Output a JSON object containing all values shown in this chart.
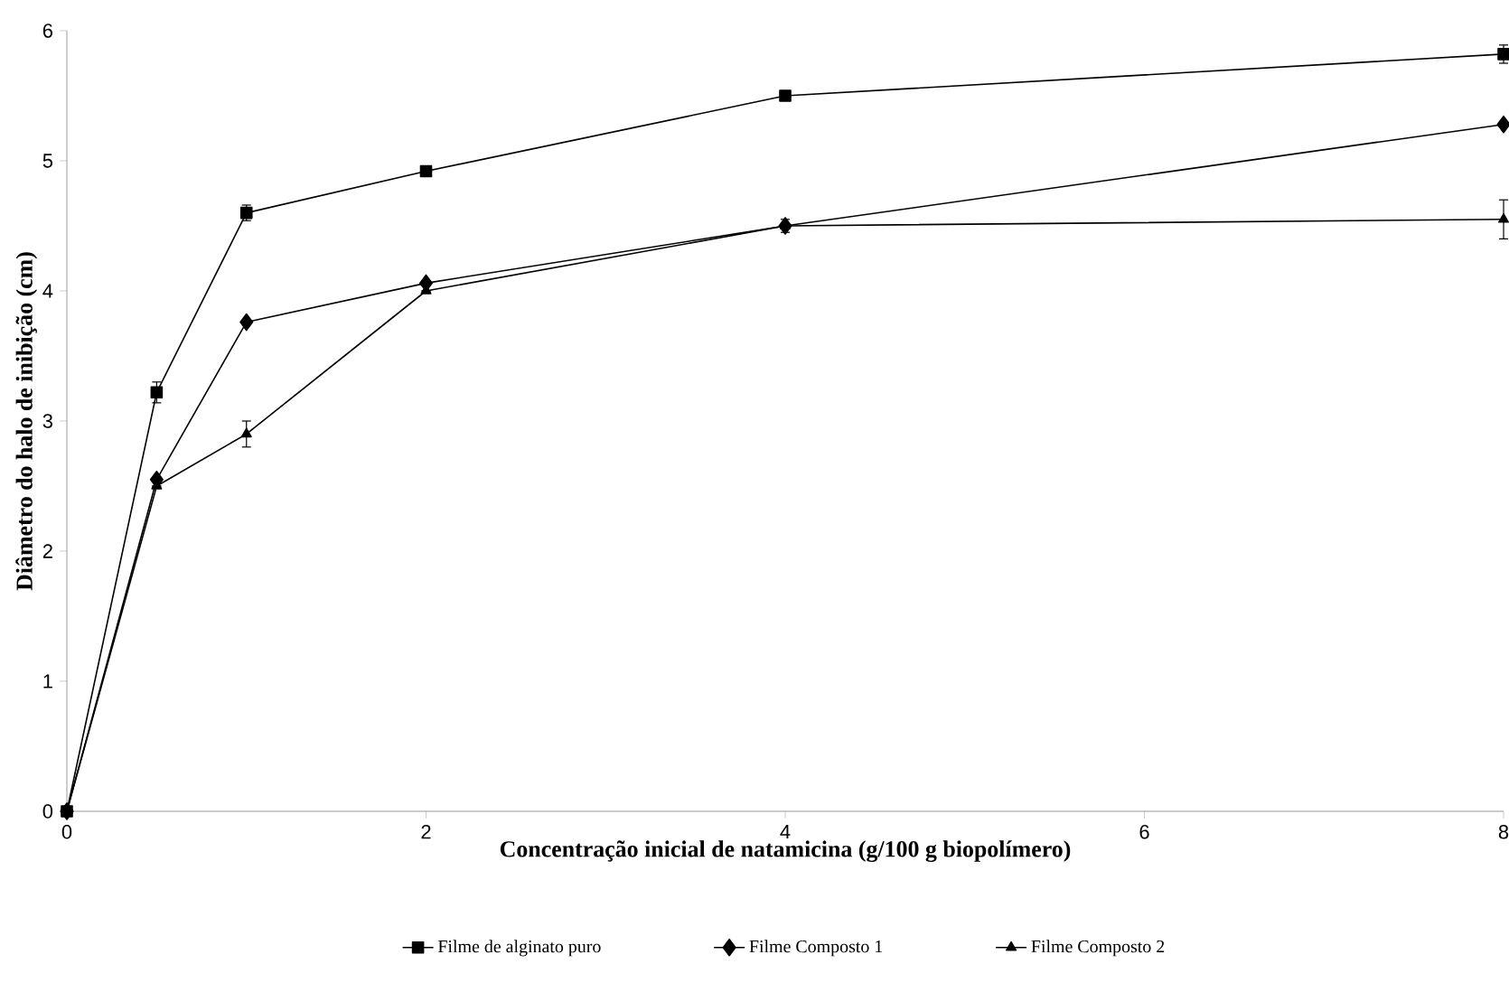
{
  "chart_data": {
    "type": "line",
    "xlabel": "Concentração inicial de natamicina (g/100 g biopolímero)",
    "ylabel": "Diâmetro do halo de inibição (cm)",
    "xlim": [
      0,
      8
    ],
    "ylim": [
      0,
      6
    ],
    "xticks": [
      0,
      2,
      4,
      6,
      8
    ],
    "yticks": [
      0,
      1,
      2,
      3,
      4,
      5,
      6
    ],
    "legend": "bottom",
    "grid": false,
    "line_style": "solid",
    "x": [
      0,
      0.5,
      1,
      2,
      4,
      8
    ],
    "series": [
      {
        "name": "Filme de alginato puro",
        "color": "#000000",
        "marker": "square",
        "values": [
          0,
          3.22,
          4.6,
          4.92,
          5.5,
          5.82
        ],
        "errors": [
          null,
          0.08,
          0.06,
          null,
          null,
          0.07
        ]
      },
      {
        "name": "Filme Composto 1",
        "color": "#000000",
        "marker": "diamond",
        "values": [
          0,
          2.55,
          3.76,
          4.06,
          4.5,
          5.28
        ],
        "errors": [
          null,
          null,
          null,
          null,
          null,
          null
        ]
      },
      {
        "name": "Filme Composto 2",
        "color": "#000000",
        "marker": "triangle",
        "values": [
          0,
          2.5,
          2.9,
          4.0,
          4.5,
          4.55
        ],
        "errors": [
          null,
          null,
          0.1,
          null,
          0.05,
          0.15
        ]
      }
    ]
  }
}
